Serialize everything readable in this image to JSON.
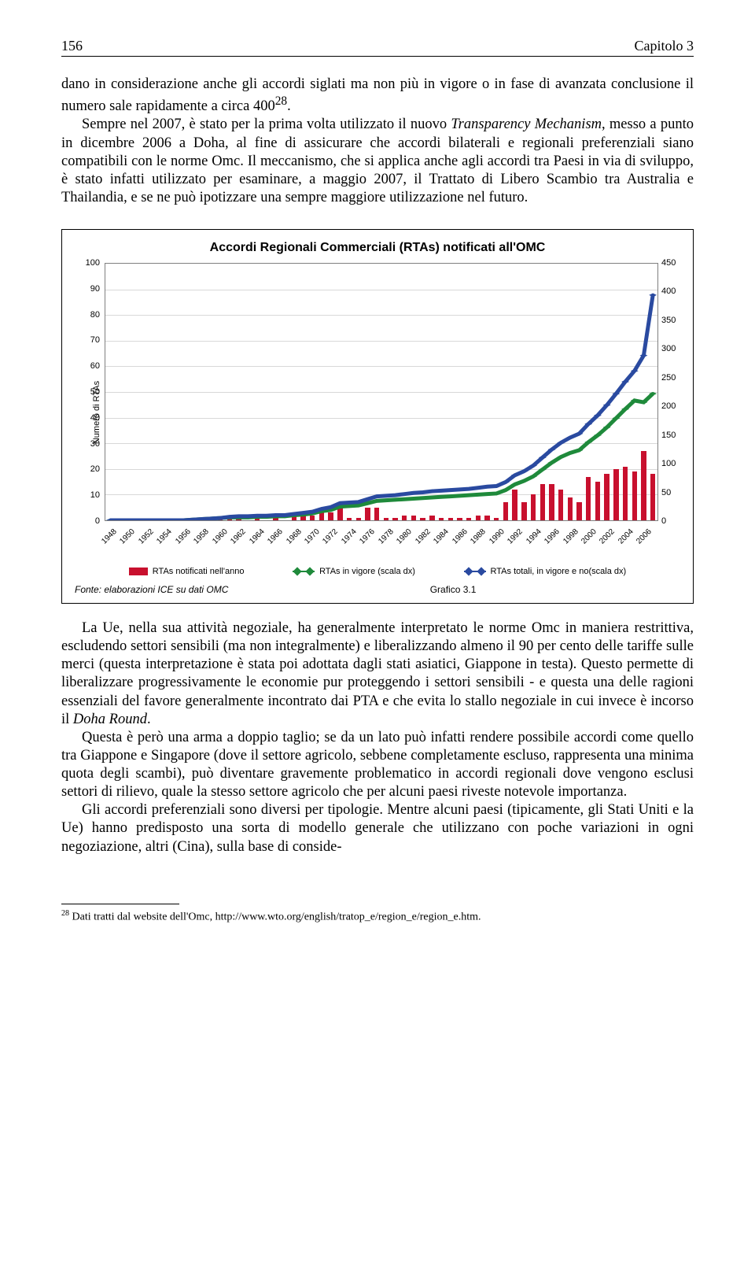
{
  "header": {
    "page_number": "156",
    "chapter": "Capitolo 3"
  },
  "para1": "dano in considerazione anche gli accordi siglati ma non più in vigore o in fase di avanzata conclusione il numero sale rapidamente a circa 400",
  "sup1": "28",
  "para1b": ".",
  "para2a": "Sempre nel 2007, è stato per la prima volta utilizzato il nuovo ",
  "para2_i1": "Transparency Mechanism",
  "para2b": ", messo a punto in dicembre 2006 a Doha, al fine di assicurare che accordi bilaterali e regionali preferenziali siano compatibili con le norme Omc. Il meccanismo, che si applica anche agli accordi tra Paesi in via di sviluppo, è stato infatti utilizzato per esaminare, a maggio 2007, il Trattato di Libero Scambio tra Australia e Thailandia, e se ne può ipotizzare una sempre maggiore utilizzazione nel futuro.",
  "chart": {
    "title": "Accordi Regionali Commerciali (RTAs) notificati all'OMC",
    "y_left_label": "Numero di RTAs",
    "y_left": {
      "min": 0,
      "max": 100,
      "step": 10
    },
    "y_right": {
      "min": 0,
      "max": 450,
      "step": 50
    },
    "years": [
      1948,
      1949,
      1950,
      1951,
      1952,
      1953,
      1954,
      1955,
      1956,
      1957,
      1958,
      1959,
      1960,
      1961,
      1962,
      1963,
      1964,
      1965,
      1966,
      1967,
      1968,
      1969,
      1970,
      1971,
      1972,
      1973,
      1974,
      1975,
      1976,
      1977,
      1978,
      1979,
      1980,
      1981,
      1982,
      1983,
      1984,
      1985,
      1986,
      1987,
      1988,
      1989,
      1990,
      1991,
      1992,
      1993,
      1994,
      1995,
      1996,
      1997,
      1998,
      1999,
      2000,
      2001,
      2002,
      2003,
      2004,
      2005,
      2006,
      2007
    ],
    "x_label_years": [
      1948,
      1950,
      1952,
      1954,
      1956,
      1958,
      1960,
      1962,
      1964,
      1966,
      1968,
      1970,
      1972,
      1974,
      1976,
      1978,
      1980,
      1982,
      1984,
      1986,
      1988,
      1990,
      1992,
      1994,
      1996,
      1998,
      2000,
      2002,
      2004,
      2006
    ],
    "bars": [
      0,
      0,
      0,
      0,
      0,
      0,
      0,
      0,
      0,
      0,
      1,
      1,
      1,
      2,
      1,
      0,
      1,
      0,
      1,
      0,
      2,
      2,
      2,
      5,
      3,
      7,
      1,
      1,
      5,
      5,
      1,
      1,
      2,
      2,
      1,
      2,
      1,
      1,
      1,
      1,
      2,
      2,
      1,
      7,
      12,
      7,
      10,
      14,
      14,
      12,
      9,
      7,
      17,
      15,
      18,
      20,
      21,
      19,
      27,
      18
    ],
    "line_green": [
      0,
      0,
      0,
      0,
      0,
      0,
      0,
      0,
      0,
      1,
      2,
      3,
      4,
      5,
      5,
      5,
      6,
      6,
      7,
      7,
      9,
      10,
      12,
      16,
      18,
      24,
      25,
      26,
      30,
      34,
      35,
      36,
      37,
      38,
      39,
      40,
      41,
      42,
      43,
      44,
      45,
      46,
      47,
      53,
      63,
      69,
      77,
      89,
      101,
      111,
      118,
      123,
      137,
      149,
      163,
      179,
      195,
      210,
      207,
      222
    ],
    "line_blue": [
      0,
      0,
      0,
      0,
      0,
      0,
      0,
      0,
      0,
      1,
      2,
      3,
      4,
      6,
      7,
      7,
      8,
      8,
      9,
      9,
      11,
      13,
      15,
      20,
      23,
      30,
      31,
      32,
      37,
      42,
      43,
      44,
      46,
      48,
      49,
      51,
      52,
      53,
      54,
      55,
      57,
      59,
      60,
      67,
      79,
      86,
      96,
      110,
      124,
      136,
      145,
      152,
      169,
      184,
      202,
      222,
      243,
      262,
      289,
      395
    ],
    "colors": {
      "bar": "#c8102e",
      "green": "#1f8a3b",
      "green_marker": "#1f8a3b",
      "blue": "#2a4aa0",
      "blue_marker": "#2a4aa0",
      "grid": "#d8d8d8",
      "axis_border": "#7f7f7f"
    },
    "legend": {
      "l1": "RTAs notificati nell'anno",
      "l2": "RTAs in vigore (scala dx)",
      "l3": "RTAs totali, in vigore e no(scala dx)"
    },
    "source": "Fonte: elaborazioni ICE su dati OMC",
    "figlabel": "Grafico 3.1"
  },
  "para3a": "La Ue, nella sua attività negoziale, ha generalmente interpretato le norme Omc in maniera restrittiva, escludendo settori sensibili (ma non integralmente) e liberalizzando almeno il 90 per cento delle tariffe sulle merci (questa interpretazione è stata poi adottata dagli stati asiatici, Giappone in testa). Questo permette di liberalizzare progressivamente le economie pur proteggendo i settori sensibili - e questa una delle ragioni essenziali del favore generalmente incontrato dai PTA e che evita lo stallo negoziale in cui invece è incorso il ",
  "para3_i1": "Doha Round",
  "para3b": ".",
  "para4": "Questa è però una arma a doppio taglio; se da un lato può infatti rendere possibile accordi come quello tra Giappone e Singapore (dove il settore agricolo, sebbene completamente escluso, rappresenta una minima quota degli scambi), può diventare gravemente problematico in accordi regionali dove vengono esclusi settori di rilievo, quale la stesso settore agricolo che per alcuni paesi riveste notevole importanza.",
  "para5": "Gli accordi preferenziali sono diversi per tipologie. Mentre alcuni paesi (tipicamente, gli Stati Uniti e la Ue) hanno predisposto una sorta di modello generale che utilizzano con poche variazioni in ogni negoziazione, altri (Cina), sulla base di conside-",
  "footnote_num": "28",
  "footnote_text": " Dati tratti dal website dell'Omc, http://www.wto.org/english/tratop_e/region_e/region_e.htm."
}
